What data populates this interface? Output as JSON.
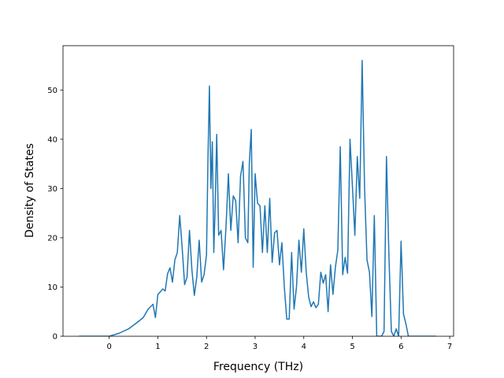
{
  "chart_data": {
    "type": "line",
    "title": "",
    "xlabel": "Frequency (THz)",
    "ylabel": "Density of States",
    "xlim": [
      -0.95,
      7.08
    ],
    "ylim": [
      0,
      59
    ],
    "xticks": [
      "0",
      "1",
      "2",
      "3",
      "4",
      "5",
      "6",
      "7"
    ],
    "yticks": [
      "0",
      "10",
      "20",
      "30",
      "40",
      "50"
    ],
    "grid": false,
    "legend": "none",
    "series": [
      {
        "color": "#1f77b4",
        "x": [
          -0.62,
          0.0,
          0.2,
          0.4,
          0.6,
          0.7,
          0.8,
          0.9,
          0.95,
          1.0,
          1.05,
          1.1,
          1.15,
          1.2,
          1.25,
          1.3,
          1.35,
          1.4,
          1.45,
          1.5,
          1.55,
          1.6,
          1.65,
          1.7,
          1.75,
          1.8,
          1.85,
          1.9,
          1.95,
          2.0,
          2.03,
          2.06,
          2.09,
          2.12,
          2.15,
          2.18,
          2.21,
          2.25,
          2.3,
          2.35,
          2.4,
          2.45,
          2.5,
          2.55,
          2.6,
          2.65,
          2.7,
          2.75,
          2.8,
          2.85,
          2.88,
          2.92,
          2.96,
          3.0,
          3.05,
          3.1,
          3.15,
          3.2,
          3.25,
          3.3,
          3.35,
          3.4,
          3.45,
          3.5,
          3.55,
          3.6,
          3.65,
          3.7,
          3.75,
          3.8,
          3.85,
          3.9,
          3.95,
          4.0,
          4.05,
          4.1,
          4.15,
          4.2,
          4.25,
          4.3,
          4.35,
          4.4,
          4.45,
          4.5,
          4.55,
          4.6,
          4.65,
          4.7,
          4.75,
          4.8,
          4.85,
          4.9,
          4.95,
          5.0,
          5.05,
          5.1,
          5.15,
          5.2,
          5.25,
          5.3,
          5.35,
          5.4,
          5.45,
          5.5,
          5.55,
          5.6,
          5.65,
          5.7,
          5.75,
          5.8,
          5.85,
          5.9,
          5.95,
          6.0,
          6.05,
          6.1,
          6.15,
          6.72
        ],
        "y": [
          0,
          0,
          0.6,
          1.5,
          3,
          3.8,
          5.5,
          6.5,
          3.8,
          8.5,
          9,
          9.6,
          9.2,
          12.7,
          13.9,
          11,
          15.5,
          17,
          24.5,
          18,
          10.5,
          12,
          21.5,
          13.5,
          8.3,
          12,
          19.5,
          11,
          12.5,
          16.5,
          36,
          50.8,
          30,
          39.5,
          17,
          27,
          41,
          20.5,
          21.5,
          13.5,
          22,
          33,
          21.5,
          28.5,
          27.5,
          19,
          32.5,
          35.5,
          20,
          19,
          35,
          42,
          14,
          33,
          27,
          26.5,
          17,
          26.5,
          17,
          28,
          15,
          21,
          21.5,
          14.5,
          19,
          10,
          3.5,
          3.5,
          17,
          5.5,
          10,
          19.5,
          13,
          21.8,
          13,
          8,
          6,
          7,
          5.8,
          6.5,
          13,
          10.8,
          12.5,
          5,
          14.5,
          8.5,
          14,
          17.5,
          38.5,
          12.5,
          16,
          12.8,
          40,
          30.5,
          20.5,
          36.5,
          28,
          56,
          30,
          15.5,
          13,
          4,
          24.5,
          0,
          0,
          0,
          1,
          36.5,
          16.5,
          1,
          0,
          1.5,
          0,
          19.3,
          4.5,
          2.5,
          0,
          0
        ]
      }
    ]
  }
}
